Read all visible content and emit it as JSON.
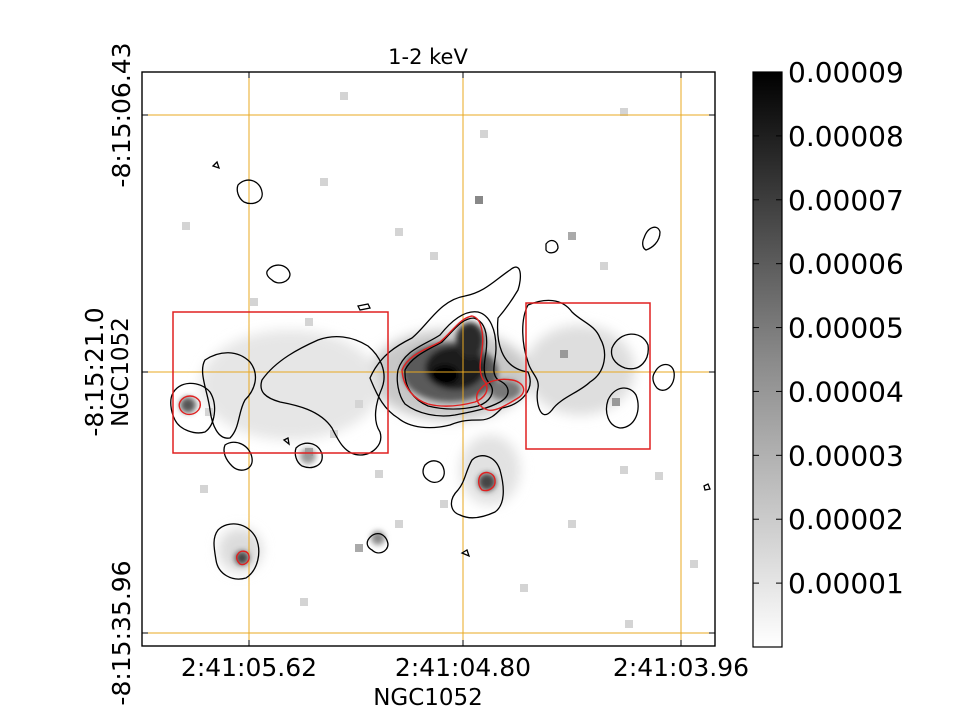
{
  "chart_data": {
    "type": "heatmap",
    "title": "1-2 keV",
    "xlabel": "NGC1052",
    "ylabel": "NGC1052",
    "x_ticks": [
      "2:41:05.62",
      "2:41:04.80",
      "2:41:03.96"
    ],
    "y_ticks": [
      "-8:15:06.43",
      "-8:15:21.0",
      "-8:15:35.96"
    ],
    "colorbar": {
      "ticks": [
        "0.00001",
        "0.00002",
        "0.00003",
        "0.00004",
        "0.00005",
        "0.00006",
        "0.00007",
        "0.00008",
        "0.00009"
      ],
      "min": 0,
      "max": 9e-05,
      "colormap": "gray_r"
    },
    "gridlines": "on",
    "colors": {
      "grid": "#e8a820",
      "regions": "#e02020",
      "contours": "#000000"
    },
    "regions": [
      {
        "shape": "box",
        "position": "left"
      },
      {
        "shape": "box",
        "position": "right"
      }
    ]
  }
}
